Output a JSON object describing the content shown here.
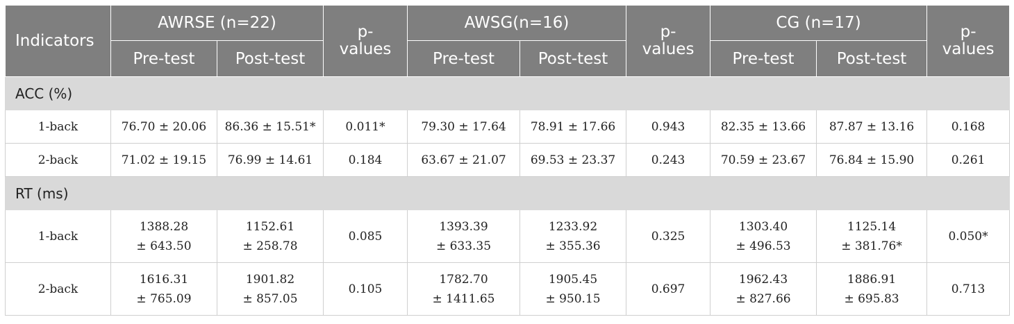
{
  "table": {
    "header": {
      "indicators": "Indicators",
      "groups": [
        "AWRSE (n=22)",
        "AWSG(n=16)",
        "CG (n=17)"
      ],
      "p_values": "p-\nvalues",
      "pre": "Pre-test",
      "post": "Post-test"
    },
    "sections": [
      {
        "title": "ACC (%)",
        "rows": [
          {
            "label": "1-back",
            "cells": [
              "76.70 ± 20.06",
              "86.36 ± 15.51*",
              "0.011*",
              "79.30 ± 17.64",
              "78.91 ± 17.66",
              "0.943",
              "82.35 ± 13.66",
              "87.87 ± 13.16",
              "0.168"
            ]
          },
          {
            "label": "2-back",
            "cells": [
              "71.02 ± 19.15",
              "76.99 ± 14.61",
              "0.184",
              "63.67 ± 21.07",
              "69.53 ± 23.37",
              "0.243",
              "70.59 ± 23.67",
              "76.84 ± 15.90",
              "0.261"
            ]
          }
        ]
      },
      {
        "title": "RT (ms)",
        "rows": [
          {
            "label": "1-back",
            "cells": [
              "1388.28\n± 643.50",
              "1152.61\n± 258.78",
              "0.085",
              "1393.39\n± 633.35",
              "1233.92\n± 355.36",
              "0.325",
              "1303.40\n± 496.53",
              "1125.14\n± 381.76*",
              "0.050*"
            ]
          },
          {
            "label": "2-back",
            "cells": [
              "1616.31\n± 765.09",
              "1901.82\n± 857.05",
              "0.105",
              "1782.70\n± 1411.65",
              "1905.45\n± 950.15",
              "0.697",
              "1962.43\n± 827.66",
              "1886.91\n± 695.83",
              "0.713"
            ]
          }
        ]
      }
    ]
  }
}
